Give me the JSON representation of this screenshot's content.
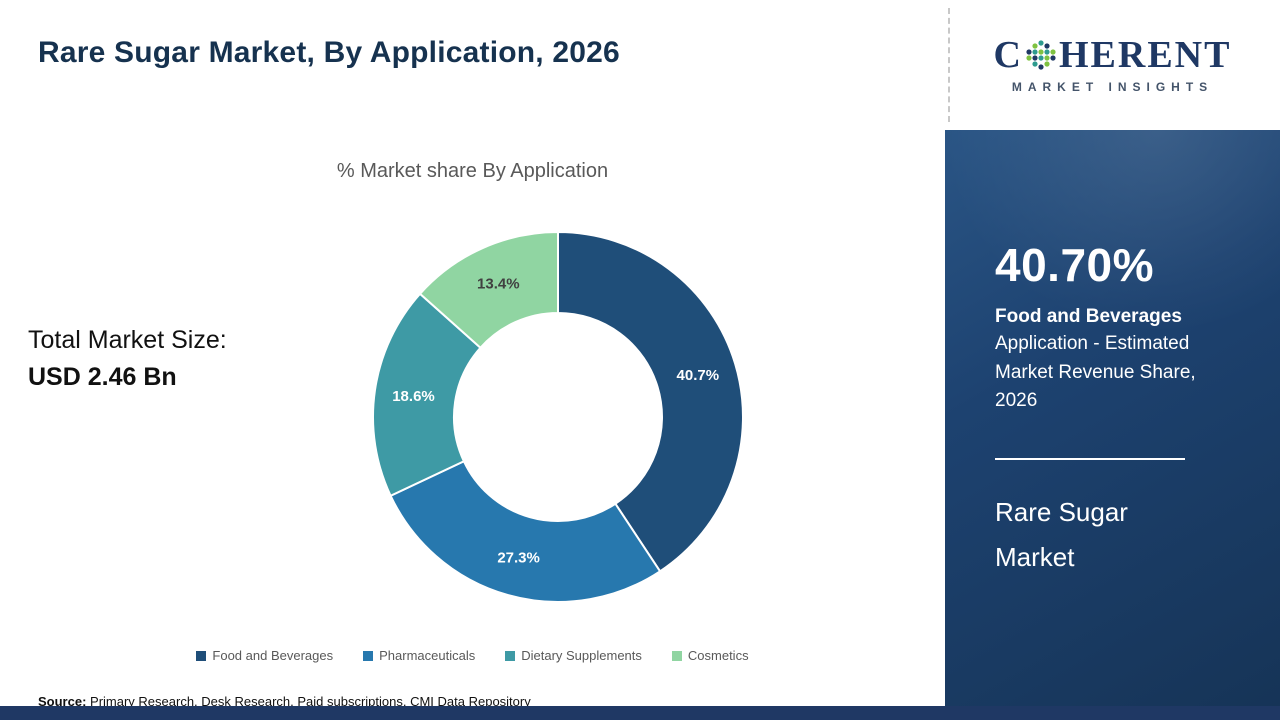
{
  "header": {
    "title": "Rare Sugar Market, By Application, 2026"
  },
  "logo": {
    "word_start": "C",
    "word_rest": "HERENT",
    "tagline": "MARKET INSIGHTS"
  },
  "left_panel": {
    "market_size_label": "Total Market Size:",
    "market_size_value": "USD 2.46 Bn"
  },
  "chart_data": {
    "type": "pie",
    "subtype": "donut",
    "title": "% Market share By Application",
    "legend_position": "bottom",
    "categories": [
      "Food and Beverages",
      "Pharmaceuticals",
      "Dietary Supplements",
      "Cosmetics"
    ],
    "values": [
      40.7,
      27.3,
      18.6,
      13.4
    ],
    "segments": [
      {
        "label": "Food and Beverages",
        "value": 40.7,
        "display": "40.7%",
        "color": "#1f4e79",
        "label_color": "#ffffff"
      },
      {
        "label": "Pharmaceuticals",
        "value": 27.3,
        "display": "27.3%",
        "color": "#2778ae",
        "label_color": "#ffffff"
      },
      {
        "label": "Dietary Supplements",
        "value": 18.6,
        "display": "18.6%",
        "color": "#3e9aa5",
        "label_color": "#ffffff"
      },
      {
        "label": "Cosmetics",
        "value": 13.4,
        "display": "13.4%",
        "color": "#90d5a2",
        "label_color": "#404040"
      }
    ]
  },
  "sidebar": {
    "highlight_value": "40.70%",
    "highlight_label": "Food and Beverages",
    "highlight_desc": "Application - Estimated Market Revenue Share, 2026",
    "market_name": "Rare Sugar Market"
  },
  "footer": {
    "source_label": "Source:",
    "source_text": " Primary Research, Desk Research, Paid subscriptions, CMI Data Repository"
  }
}
